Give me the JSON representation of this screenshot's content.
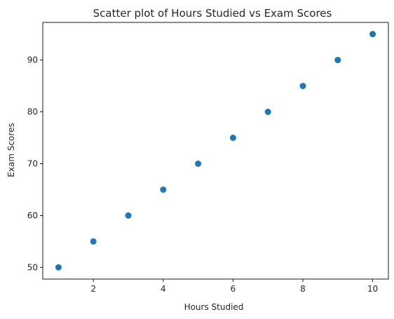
{
  "chart_data": {
    "type": "scatter",
    "title": "Scatter plot of Hours Studied vs Exam Scores",
    "xlabel": "Hours Studied",
    "ylabel": "Exam Scores",
    "x": [
      1,
      2,
      3,
      4,
      5,
      6,
      7,
      8,
      9,
      10
    ],
    "y": [
      50,
      55,
      60,
      65,
      70,
      75,
      80,
      85,
      90,
      95
    ],
    "xlim": [
      0.55,
      10.45
    ],
    "ylim": [
      47.75,
      97.25
    ],
    "xticks": [
      2,
      4,
      6,
      8,
      10
    ],
    "yticks": [
      50,
      60,
      70,
      80,
      90
    ],
    "grid": false,
    "legend": "none",
    "point_color": "#1f77b4"
  }
}
